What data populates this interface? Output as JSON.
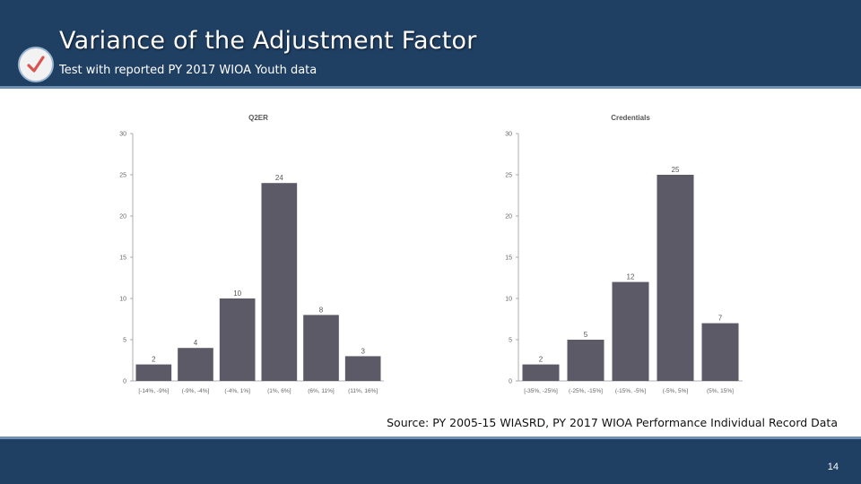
{
  "header": {
    "title": "Variance of the Adjustment Factor",
    "subtitle": "Test with reported PY 2017 WIOA Youth data",
    "icon": "checkmark-icon",
    "accent_color": "#1f3f63",
    "check_color": "#d9534f"
  },
  "chart_data": [
    {
      "type": "bar",
      "title": "Q2ER",
      "categories": [
        "[-14%, -9%]",
        "(-9%, -4%]",
        "(-4%, 1%]",
        "(1%, 6%]",
        "(6%, 11%]",
        "(11%, 16%]"
      ],
      "values": [
        2,
        4,
        10,
        24,
        8,
        3
      ],
      "ylim": [
        0,
        30
      ],
      "yticks": [
        0,
        5,
        10,
        15,
        20,
        25,
        30
      ],
      "bar_color": "#5c5a66",
      "grid": false
    },
    {
      "type": "bar",
      "title": "Credentials",
      "categories": [
        "[-35%, -25%]",
        "(-25%, -15%]",
        "(-15%, -5%]",
        "(-5%, 5%]",
        "(5%, 15%]"
      ],
      "values": [
        2,
        5,
        12,
        25,
        7
      ],
      "ylim": [
        0,
        30
      ],
      "yticks": [
        0,
        5,
        10,
        15,
        20,
        25,
        30
      ],
      "bar_color": "#5c5a66",
      "grid": false
    }
  ],
  "source": "Source: PY 2005-15 WIASRD, PY 2017 WIOA Performance Individual Record Data",
  "page_number": "14"
}
